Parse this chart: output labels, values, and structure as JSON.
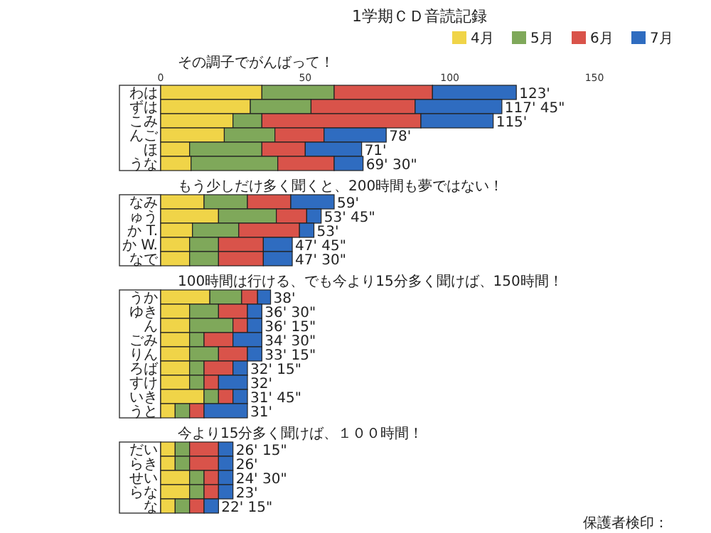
{
  "chart_data": [
    {
      "type": "bar",
      "orientation": "horizontal",
      "stacked": true,
      "title": "1学期ＣＤ音読記録",
      "subtitle": "その調子でがんばって！",
      "legend": "top right",
      "xlim": [
        0,
        150
      ],
      "xticks": [
        0,
        50,
        100,
        150
      ],
      "categories": [
        "わは",
        "ずは",
        "こみ",
        "んご",
        "ほ",
        "うな"
      ],
      "series": [
        {
          "name": "4月",
          "color": "#f0d448",
          "values": [
            35,
            31,
            25,
            22,
            10,
            10.5
          ]
        },
        {
          "name": "5月",
          "color": "#7fa85a",
          "values": [
            25,
            21,
            10,
            17.5,
            25,
            30
          ]
        },
        {
          "name": "6月",
          "color": "#d9534a",
          "values": [
            34,
            36,
            55,
            17,
            15,
            19.5
          ]
        },
        {
          "name": "7月",
          "color": "#2f6cc0",
          "values": [
            29,
            30,
            25,
            21.5,
            19.5,
            10
          ]
        }
      ],
      "totals": [
        "123'",
        "117' 45\"",
        "115'",
        "78'",
        "71'",
        "69' 30\""
      ]
    },
    {
      "type": "bar",
      "orientation": "horizontal",
      "stacked": true,
      "subtitle": "もう少しだけ多く聞くと、200時間も夢ではない！",
      "xlim": [
        0,
        150
      ],
      "tick_labels": "y",
      "categories": [
        "なみ",
        "ゅう",
        "か T.",
        "か W.",
        "なで"
      ],
      "series": [
        {
          "color": "#f0d448",
          "values": [
            15,
            20,
            11,
            10,
            10
          ]
        },
        {
          "color": "#7fa85a",
          "values": [
            15,
            20,
            16,
            10,
            10
          ]
        },
        {
          "color": "#d9534a",
          "values": [
            15,
            10.5,
            21,
            15.5,
            15.5
          ]
        },
        {
          "color": "#2f6cc0",
          "values": [
            15,
            5,
            5,
            10,
            10
          ]
        }
      ],
      "totals": [
        "59'",
        "53' 45\"",
        "53'",
        "47' 45\"",
        "47' 30\""
      ]
    },
    {
      "type": "bar",
      "orientation": "horizontal",
      "stacked": true,
      "subtitle": "100時間は行ける、でも今より15分多く聞けば、150時間！",
      "xlim": [
        0,
        150
      ],
      "tick_labels": "y",
      "categories": [
        "うか",
        "ゆき",
        "ん",
        "ごみ",
        "りん",
        "ろば",
        "すけ",
        "いき",
        "うと"
      ],
      "series": [
        {
          "color": "#f0d448",
          "values": [
            17,
            10,
            10,
            10,
            10,
            10,
            10,
            15,
            5
          ]
        },
        {
          "color": "#7fa85a",
          "values": [
            11,
            10,
            15,
            5,
            10,
            5,
            5,
            5,
            5
          ]
        },
        {
          "color": "#d9534a",
          "values": [
            5.5,
            10,
            5,
            10,
            10,
            10,
            5,
            5,
            5
          ]
        },
        {
          "color": "#2f6cc0",
          "values": [
            4.5,
            5,
            5,
            10,
            5,
            5,
            10,
            5,
            15
          ]
        }
      ],
      "totals": [
        "38'",
        "36' 30\"",
        "36' 15\"",
        "34' 30\"",
        "33' 15\"",
        "32' 15\"",
        "32'",
        "31' 45\"",
        "31'"
      ]
    },
    {
      "type": "bar",
      "orientation": "horizontal",
      "stacked": true,
      "subtitle": "今より15分多く聞けば、１００時間！",
      "xlim": [
        0,
        150
      ],
      "tick_labels": "y",
      "categories": [
        "だい",
        "らき",
        "せい",
        "らな",
        "な"
      ],
      "series": [
        {
          "color": "#f0d448",
          "values": [
            5,
            5,
            10,
            10,
            5
          ]
        },
        {
          "color": "#7fa85a",
          "values": [
            5,
            5,
            5,
            5,
            5
          ]
        },
        {
          "color": "#d9534a",
          "values": [
            10,
            10,
            5,
            5,
            5
          ]
        },
        {
          "color": "#2f6cc0",
          "values": [
            5,
            5,
            5,
            5,
            5
          ]
        }
      ],
      "totals": [
        "26' 15\"",
        "26'",
        "24' 30\"",
        "23'",
        "22' 15\""
      ],
      "annotations": [
        "保護者検印："
      ]
    }
  ]
}
